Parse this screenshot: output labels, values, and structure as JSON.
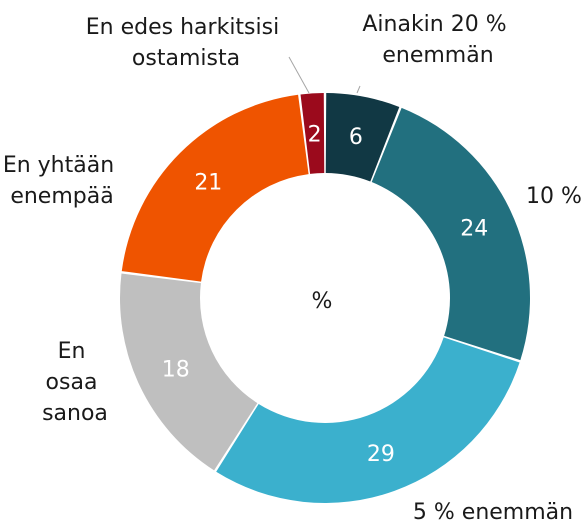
{
  "chart_data": {
    "type": "pie",
    "donut": true,
    "center_text": "%",
    "slices": [
      {
        "label": "Ainakin 20 % enemmän",
        "label_lines": [
          "Ainakin 20 %",
          "enemmän"
        ],
        "value": 6,
        "color": "#113844"
      },
      {
        "label": "10 %",
        "label_lines": [
          "10 %"
        ],
        "value": 24,
        "color": "#22707f"
      },
      {
        "label": "5 % enemmän",
        "label_lines": [
          "5 % enemmän"
        ],
        "value": 29,
        "color": "#3bb0cd"
      },
      {
        "label": "En osaa sanoa",
        "label_lines": [
          "En",
          "osaa",
          "sanoa"
        ],
        "value": 18,
        "color": "#bfbfbf"
      },
      {
        "label": "En yhtään enempää",
        "label_lines": [
          "En yhtään",
          "enempää"
        ],
        "value": 21,
        "color": "#ef5400"
      },
      {
        "label": "En edes harkitsisi ostamista",
        "label_lines": [
          "En edes harkitsisi",
          "ostamista"
        ],
        "value": 2,
        "color": "#9b0a1c"
      }
    ]
  }
}
